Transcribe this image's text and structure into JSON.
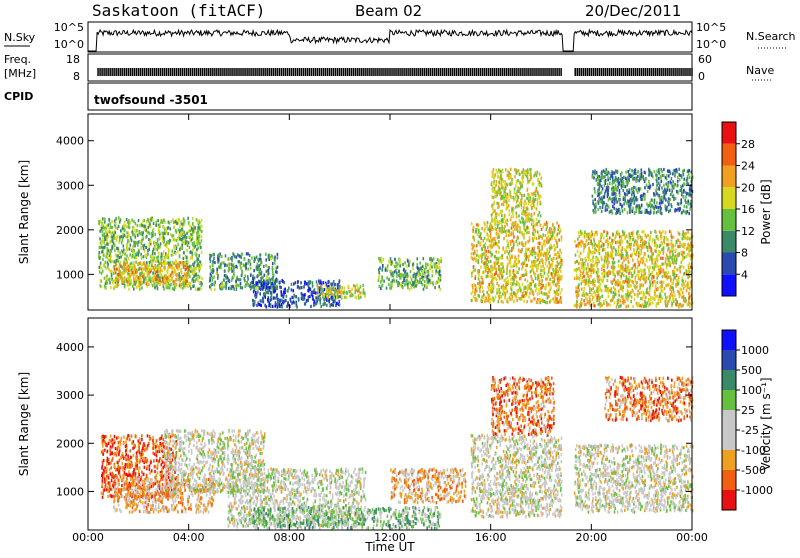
{
  "header": {
    "station": "Saskatoon (fitACF)",
    "beam": "Beam 02",
    "date": "20/Dec/2011"
  },
  "strips": {
    "nsky_label": "N.Sky",
    "nsky_ticks": [
      "10^5",
      "10^0"
    ],
    "nsearch_label": "N.Search",
    "nsearch_ticks": [
      "10^5",
      "10^0"
    ],
    "freq_label_1": "Freq.",
    "freq_label_2": "[MHz]",
    "freq_ticks": [
      "18",
      "8"
    ],
    "nave_label": "Nave",
    "nave_ticks": [
      "60",
      "0"
    ],
    "cpid_label": "CPID",
    "cpid_value": "twofsound -3501",
    "gaps_hours": [
      [
        0.0,
        0.35
      ],
      [
        18.85,
        19.3
      ]
    ]
  },
  "colors": {
    "power": [
      "#1010ff",
      "#2a4ab0",
      "#3a8a6a",
      "#66c040",
      "#d8d820",
      "#f0a020",
      "#f06010",
      "#e81010"
    ],
    "velocity": [
      "#e81010",
      "#f06010",
      "#f0a020",
      "#c8c8c8",
      "#c8c8c8",
      "#66c040",
      "#3a8a6a",
      "#2a4ab0",
      "#1010ff"
    ]
  },
  "chart_data": [
    {
      "type": "heatmap",
      "name": "power-panel",
      "ylabel": "Slant Range [km]",
      "y_ticks": [
        "1000",
        "2000",
        "3000",
        "4000"
      ],
      "ylim": [
        200,
        4600
      ],
      "xlim": [
        0,
        24
      ],
      "colorbar_label": "Power [dB]",
      "colorbar_ticks": [
        "4",
        "8",
        "12",
        "16",
        "20",
        "24",
        "28"
      ],
      "regions": [
        {
          "t0": 0.4,
          "t1": 4.5,
          "r0": 700,
          "r1": 2300,
          "level": 0.45
        },
        {
          "t0": 1.0,
          "t1": 4.0,
          "r0": 800,
          "r1": 1300,
          "level": 0.65
        },
        {
          "t0": 4.8,
          "t1": 7.5,
          "r0": 700,
          "r1": 1500,
          "level": 0.35
        },
        {
          "t0": 6.5,
          "t1": 10.0,
          "r0": 300,
          "r1": 900,
          "level": 0.2
        },
        {
          "t0": 9.0,
          "t1": 11.0,
          "r0": 500,
          "r1": 800,
          "level": 0.55
        },
        {
          "t0": 11.5,
          "t1": 14.0,
          "r0": 700,
          "r1": 1400,
          "level": 0.4
        },
        {
          "t0": 15.2,
          "t1": 18.8,
          "r0": 400,
          "r1": 2200,
          "level": 0.6
        },
        {
          "t0": 16.0,
          "t1": 18.0,
          "r0": 2200,
          "r1": 3400,
          "level": 0.55
        },
        {
          "t0": 19.3,
          "t1": 24.0,
          "r0": 300,
          "r1": 2000,
          "level": 0.6
        },
        {
          "t0": 20.0,
          "t1": 24.0,
          "r0": 2400,
          "r1": 3400,
          "level": 0.3
        }
      ]
    },
    {
      "type": "heatmap",
      "name": "velocity-panel",
      "ylabel": "Slant Range [km]",
      "y_ticks": [
        "1000",
        "2000",
        "3000",
        "4000"
      ],
      "ylim": [
        200,
        4600
      ],
      "xlim": [
        0,
        24
      ],
      "xlabel": "Time UT",
      "x_ticks": [
        "00:00",
        "04:00",
        "08:00",
        "12:00",
        "16:00",
        "20:00",
        "00:00"
      ],
      "colorbar_label": "Velocity [m s⁻¹]",
      "colorbar_ticks": [
        "-1000",
        "-500",
        "-100",
        "-25",
        "25",
        "100",
        "500",
        "1000"
      ],
      "regions": [
        {
          "t0": 0.5,
          "t1": 3.5,
          "r0": 900,
          "r1": 2200,
          "level": 0.15
        },
        {
          "t0": 1.0,
          "t1": 5.0,
          "r0": 600,
          "r1": 1300,
          "level": 0.3
        },
        {
          "t0": 3.0,
          "t1": 7.0,
          "r0": 1000,
          "r1": 2300,
          "level": 0.45
        },
        {
          "t0": 5.5,
          "t1": 11.0,
          "r0": 300,
          "r1": 1500,
          "level": 0.47
        },
        {
          "t0": 6.5,
          "t1": 14.0,
          "r0": 250,
          "r1": 700,
          "level": 0.6
        },
        {
          "t0": 12.0,
          "t1": 15.0,
          "r0": 800,
          "r1": 1500,
          "level": 0.3
        },
        {
          "t0": 15.2,
          "t1": 18.8,
          "r0": 500,
          "r1": 2200,
          "level": 0.45
        },
        {
          "t0": 16.0,
          "t1": 18.5,
          "r0": 2200,
          "r1": 3400,
          "level": 0.2
        },
        {
          "t0": 19.3,
          "t1": 24.0,
          "r0": 600,
          "r1": 2000,
          "level": 0.45
        },
        {
          "t0": 20.5,
          "t1": 24.0,
          "r0": 2500,
          "r1": 3400,
          "level": 0.22
        }
      ]
    }
  ]
}
